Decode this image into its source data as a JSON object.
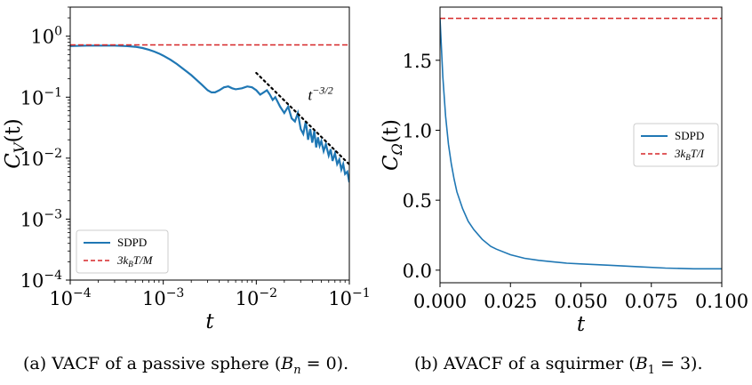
{
  "chart_data": [
    {
      "type": "line",
      "xscale": "log",
      "yscale": "log",
      "xlim": [
        0.0001,
        0.1
      ],
      "ylim": [
        0.0001,
        3
      ],
      "xlabel": "t",
      "ylabel": "C_V(t)",
      "x_ticks": [
        0.0001,
        0.001,
        0.01,
        0.1
      ],
      "x_tick_labels": [
        {
          "base": "10",
          "exp": "−4"
        },
        {
          "base": "10",
          "exp": "−3"
        },
        {
          "base": "10",
          "exp": "−2"
        },
        {
          "base": "10",
          "exp": "−1"
        }
      ],
      "y_ticks": [
        0.0001,
        0.001,
        0.01,
        0.1,
        1
      ],
      "y_tick_labels": [
        {
          "base": "10",
          "exp": "−4"
        },
        {
          "base": "10",
          "exp": "−3"
        },
        {
          "base": "10",
          "exp": "−2"
        },
        {
          "base": "10",
          "exp": "−1"
        },
        {
          "base": "10",
          "exp": "0"
        }
      ],
      "legend_position": "lower-left",
      "series": [
        {
          "name": "SDPD",
          "color": "#1f77b4",
          "style": "solid",
          "x": [
            0.0001,
            0.00015,
            0.0002,
            0.00025,
            0.0003,
            0.0004,
            0.0005,
            0.0006,
            0.0007,
            0.0008,
            0.0009,
            0.001,
            0.0012,
            0.0014,
            0.0016,
            0.0018,
            0.002,
            0.0023,
            0.0026,
            0.003,
            0.0033,
            0.0036,
            0.004,
            0.0045,
            0.005,
            0.0055,
            0.006,
            0.007,
            0.008,
            0.009,
            0.01,
            0.011,
            0.012,
            0.013,
            0.014,
            0.015,
            0.016,
            0.018,
            0.02,
            0.022,
            0.024,
            0.026,
            0.028,
            0.03,
            0.032,
            0.034,
            0.036,
            0.038,
            0.04,
            0.042,
            0.044,
            0.046,
            0.048,
            0.05,
            0.053,
            0.056,
            0.06,
            0.063,
            0.066,
            0.07,
            0.074,
            0.078,
            0.082,
            0.086,
            0.09,
            0.095,
            0.1
          ],
          "y": [
            0.69,
            0.7,
            0.7,
            0.7,
            0.7,
            0.69,
            0.67,
            0.64,
            0.6,
            0.56,
            0.52,
            0.48,
            0.41,
            0.35,
            0.3,
            0.26,
            0.23,
            0.19,
            0.16,
            0.13,
            0.12,
            0.12,
            0.13,
            0.145,
            0.15,
            0.14,
            0.135,
            0.14,
            0.15,
            0.145,
            0.13,
            0.11,
            0.12,
            0.13,
            0.11,
            0.09,
            0.1,
            0.07,
            0.055,
            0.07,
            0.045,
            0.04,
            0.055,
            0.03,
            0.025,
            0.04,
            0.02,
            0.03,
            0.018,
            0.028,
            0.015,
            0.022,
            0.016,
            0.019,
            0.013,
            0.017,
            0.011,
            0.014,
            0.009,
            0.012,
            0.008,
            0.0095,
            0.0065,
            0.008,
            0.0055,
            0.006,
            0.004
          ]
        },
        {
          "name": "3k_BT/M",
          "name_parts": {
            "lead": "3k",
            "sub": "B",
            "tail": "T/M"
          },
          "color": "#d62728",
          "style": "dashed",
          "x": [
            0.0001,
            0.1
          ],
          "y": [
            0.72,
            0.72
          ]
        }
      ],
      "annotations": [
        {
          "kind": "power-law guide",
          "color": "#000000",
          "style": "dotted",
          "x": [
            0.01,
            0.1
          ],
          "y": [
            0.25,
            0.0079
          ],
          "text": {
            "base": "t",
            "exp": "−3/2"
          },
          "text_at": [
            0.036,
            0.09
          ]
        }
      ],
      "caption": "(a) VACF of a passive sphere (B_n = 0).",
      "caption_parts": {
        "before": "(a) VACF of a passive sphere (",
        "var": "B",
        "sub": "n",
        "after": " = 0)."
      }
    },
    {
      "type": "line",
      "xscale": "linear",
      "yscale": "linear",
      "xlim": [
        0.0,
        0.1
      ],
      "ylim": [
        -0.09,
        1.88
      ],
      "xlabel": "t",
      "ylabel": "C_Ω(t)",
      "x_ticks": [
        0.0,
        0.025,
        0.05,
        0.075,
        0.1
      ],
      "x_tick_labels": [
        "0.000",
        "0.025",
        "0.050",
        "0.075",
        "0.100"
      ],
      "y_ticks": [
        0.0,
        0.5,
        1.0,
        1.5
      ],
      "y_tick_labels": [
        "0.0",
        "0.5",
        "1.0",
        "1.5"
      ],
      "legend_position": "center-right",
      "series": [
        {
          "name": "SDPD",
          "color": "#1f77b4",
          "style": "solid",
          "x": [
            0.0,
            0.001,
            0.002,
            0.003,
            0.004,
            0.005,
            0.006,
            0.008,
            0.01,
            0.012,
            0.015,
            0.018,
            0.02,
            0.025,
            0.03,
            0.035,
            0.04,
            0.045,
            0.05,
            0.06,
            0.07,
            0.08,
            0.09,
            0.1
          ],
          "y": [
            1.8,
            1.38,
            1.1,
            0.9,
            0.76,
            0.65,
            0.56,
            0.44,
            0.35,
            0.29,
            0.22,
            0.17,
            0.15,
            0.11,
            0.085,
            0.07,
            0.06,
            0.05,
            0.045,
            0.035,
            0.025,
            0.015,
            0.01,
            0.01
          ]
        },
        {
          "name": "3k_BT/I",
          "name_parts": {
            "lead": "3k",
            "sub": "B",
            "tail": "T/I"
          },
          "color": "#d62728",
          "style": "dashed",
          "x": [
            0.0,
            0.1
          ],
          "y": [
            1.8,
            1.8
          ]
        }
      ],
      "caption": "(b) AVACF of a squirmer (B_1 = 3).",
      "caption_parts": {
        "before": "(b) AVACF of a squirmer (",
        "var": "B",
        "sub": "1",
        "after": " = 3)."
      }
    }
  ]
}
